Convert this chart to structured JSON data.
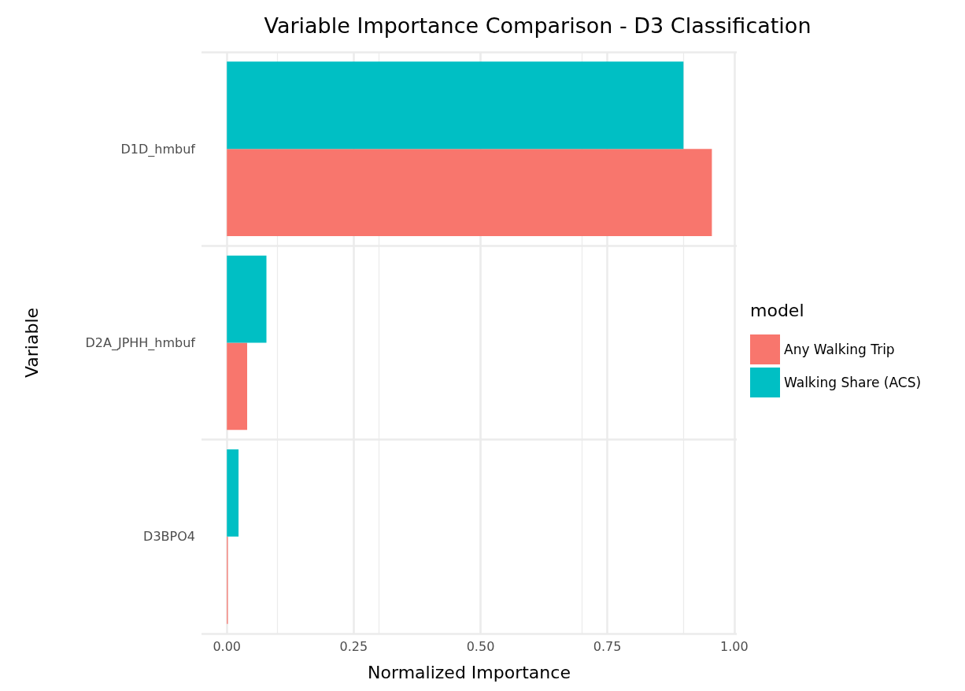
{
  "chart_data": {
    "type": "bar",
    "orientation": "horizontal",
    "title": "Variable Importance Comparison - D3 Classification",
    "xlabel": "Normalized Importance",
    "ylabel": "Variable",
    "legend_title": "model",
    "categories": [
      "D1D_hmbuf",
      "D2A_JPHH_hmbuf",
      "D3BPO4"
    ],
    "series": [
      {
        "name": "Any Walking Trip",
        "color": "#f8766d",
        "values": [
          0.956,
          0.04,
          0.002
        ]
      },
      {
        "name": "Walking Share (ACS)",
        "color": "#00bfc4",
        "values": [
          0.9,
          0.078,
          0.023
        ]
      }
    ],
    "xlim": [
      -0.05,
      1.005
    ],
    "xticks": [
      {
        "value": 0,
        "label": "0.00"
      },
      {
        "value": 0.25,
        "label": "0.25"
      },
      {
        "value": 0.5,
        "label": "0.50"
      },
      {
        "value": 0.75,
        "label": "0.75"
      },
      {
        "value": 1,
        "label": "1.00"
      }
    ],
    "grid": true,
    "legend": "right"
  }
}
